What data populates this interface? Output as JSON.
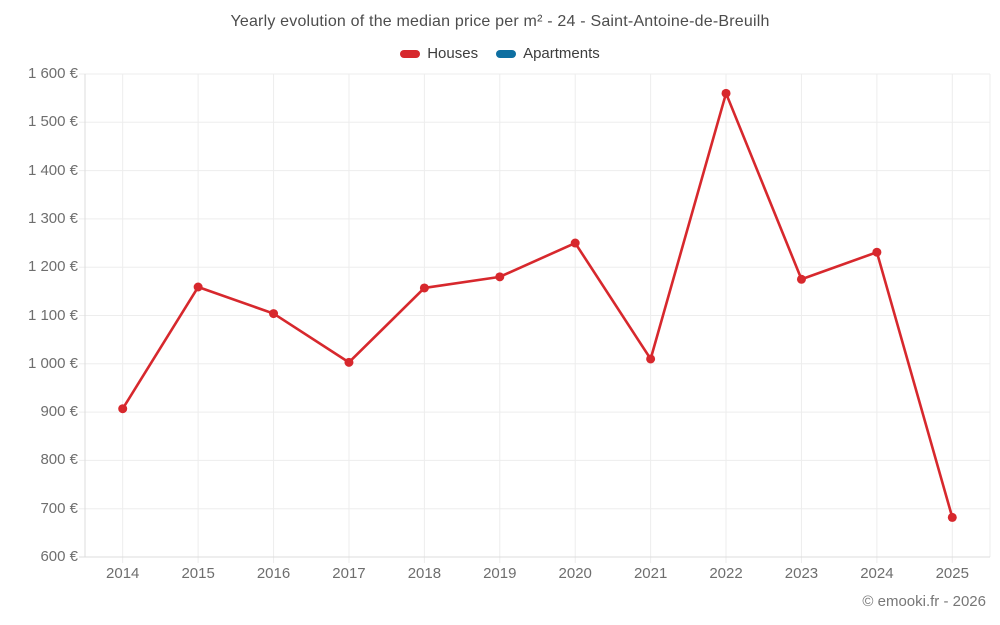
{
  "title": "Yearly evolution of the median price per m² - 24 - Saint-Antoine-de-Breuilh",
  "legend": {
    "items": [
      {
        "label": "Houses",
        "color": "#d7282d"
      },
      {
        "label": "Apartments",
        "color": "#0e6fa1"
      }
    ]
  },
  "footer": "© emooki.fr - 2026",
  "colors": {
    "grid": "#ededed",
    "axis": "#dcdcdc",
    "title_text": "#4d4d4d",
    "legend_text": "#3d3d3d",
    "tick_text": "#6e6e6e",
    "footer_text": "#777777",
    "background": "#ffffff"
  },
  "chart_data": {
    "type": "line",
    "title": "Yearly evolution of the median price per m² - 24 - Saint-Antoine-de-Breuilh",
    "categories": [
      "2014",
      "2015",
      "2016",
      "2017",
      "2018",
      "2019",
      "2020",
      "2021",
      "2022",
      "2023",
      "2024",
      "2025"
    ],
    "series": [
      {
        "name": "Houses",
        "color": "#d7282d",
        "values": [
          907,
          1159,
          1104,
          1003,
          1157,
          1180,
          1250,
          1010,
          1560,
          1175,
          1231,
          682
        ]
      },
      {
        "name": "Apartments",
        "color": "#0e6fa1",
        "values": []
      }
    ],
    "xlabel": "",
    "ylabel": "",
    "ylim": [
      600,
      1600
    ],
    "ytick_step": 100,
    "ytick_labels": [
      "600 €",
      "700 €",
      "800 €",
      "900 €",
      "1 000 €",
      "1 100 €",
      "1 200 €",
      "1 300 €",
      "1 400 €",
      "1 500 €",
      "1 600 €"
    ],
    "grid": true,
    "legend_position": "top",
    "marker": "circle"
  }
}
